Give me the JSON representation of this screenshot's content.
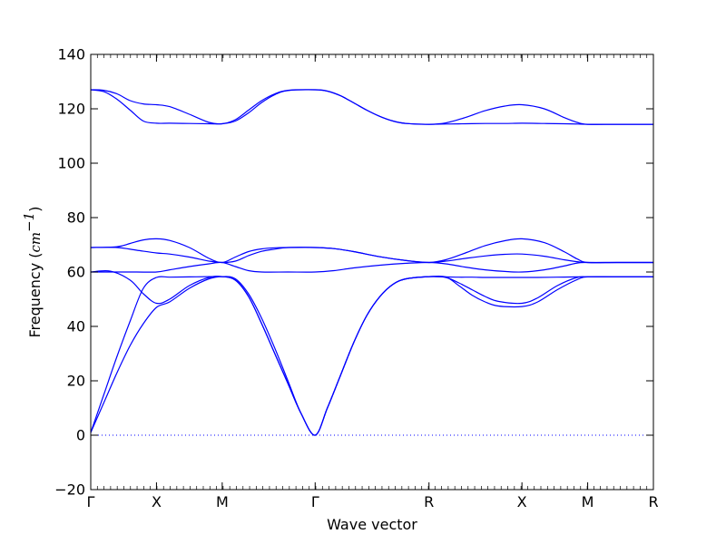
{
  "chart_data": {
    "type": "line",
    "title": "",
    "xlabel": "Wave vector",
    "ylabel": {
      "prefix": "Frequency (",
      "unit_base": "cm",
      "unit_exp": "−1",
      "suffix": ")"
    },
    "ylim": [
      -20,
      140
    ],
    "yticks": [
      -20,
      0,
      20,
      40,
      60,
      80,
      100,
      120,
      140
    ],
    "xticks": [
      {
        "label": "Γ",
        "pos": 0.0
      },
      {
        "label": "X",
        "pos": 0.5
      },
      {
        "label": "M",
        "pos": 1.0
      },
      {
        "label": "Γ",
        "pos": 1.7071
      },
      {
        "label": "R",
        "pos": 2.5731
      },
      {
        "label": "X",
        "pos": 3.2802
      },
      {
        "label": "M",
        "pos": 3.7802
      },
      {
        "label": "R",
        "pos": 4.2802
      }
    ],
    "line_color": "#0000ff",
    "zero_line_color": "#0000ff",
    "series": [
      {
        "values": [
          [
            0,
            1
          ],
          [
            0.1,
            12
          ],
          [
            0.2,
            23
          ],
          [
            0.3,
            33
          ],
          [
            0.4,
            41
          ],
          [
            0.5,
            47
          ],
          [
            0.6,
            49
          ],
          [
            0.75,
            54
          ],
          [
            0.9,
            57.5
          ],
          [
            1,
            58.3
          ],
          [
            1.1,
            57.5
          ],
          [
            1.2,
            52
          ],
          [
            1.3,
            43
          ],
          [
            1.4,
            32
          ],
          [
            1.5,
            20
          ],
          [
            1.6,
            8
          ],
          [
            1.7071,
            0
          ],
          [
            1.8,
            10
          ],
          [
            1.9,
            22
          ],
          [
            2.0,
            34
          ],
          [
            2.1,
            44
          ],
          [
            2.2,
            51
          ],
          [
            2.3,
            55.5
          ],
          [
            2.4,
            57.5
          ],
          [
            2.5731,
            58.3
          ],
          [
            2.7,
            58.2
          ],
          [
            2.8,
            55
          ],
          [
            2.9,
            51.5
          ],
          [
            3.0,
            49
          ],
          [
            3.1,
            47.5
          ],
          [
            3.2802,
            47.3
          ],
          [
            3.4,
            49
          ],
          [
            3.55,
            53.5
          ],
          [
            3.7,
            57.2
          ],
          [
            3.7802,
            58.2
          ],
          [
            4.0,
            58.2
          ],
          [
            4.2802,
            58.2
          ]
        ]
      },
      {
        "values": [
          [
            0,
            1
          ],
          [
            0.1,
            15
          ],
          [
            0.2,
            29
          ],
          [
            0.3,
            42
          ],
          [
            0.4,
            54
          ],
          [
            0.5,
            58
          ],
          [
            0.6,
            58.1
          ],
          [
            0.75,
            58.2
          ],
          [
            0.9,
            58.3
          ],
          [
            1,
            58.3
          ],
          [
            1.1,
            57
          ],
          [
            1.2,
            51
          ],
          [
            1.3,
            41
          ],
          [
            1.4,
            30
          ],
          [
            1.5,
            19
          ],
          [
            1.6,
            8
          ],
          [
            1.7071,
            0
          ],
          [
            1.8,
            10
          ],
          [
            1.9,
            22
          ],
          [
            2.0,
            34
          ],
          [
            2.1,
            44
          ],
          [
            2.2,
            51
          ],
          [
            2.3,
            55.5
          ],
          [
            2.4,
            57.5
          ],
          [
            2.5731,
            58.3
          ],
          [
            2.7,
            58.2
          ],
          [
            2.8,
            58.1
          ],
          [
            2.9,
            58.1
          ],
          [
            3.0,
            58.0
          ],
          [
            3.1,
            58.0
          ],
          [
            3.2802,
            58.0
          ],
          [
            3.4,
            58.0
          ],
          [
            3.55,
            58.1
          ],
          [
            3.7,
            58.2
          ],
          [
            3.7802,
            58.2
          ],
          [
            4.0,
            58.2
          ],
          [
            4.2802,
            58.2
          ]
        ]
      },
      {
        "values": [
          [
            0,
            60
          ],
          [
            0.15,
            60.3
          ],
          [
            0.3,
            57
          ],
          [
            0.4,
            52
          ],
          [
            0.5,
            48.5
          ],
          [
            0.6,
            50
          ],
          [
            0.75,
            55
          ],
          [
            0.9,
            58
          ],
          [
            1,
            58.3
          ],
          [
            1.1,
            57
          ],
          [
            1.2,
            51
          ],
          [
            1.3,
            41
          ],
          [
            1.4,
            30
          ],
          [
            1.5,
            19
          ],
          [
            1.6,
            8
          ],
          [
            1.7071,
            0
          ],
          [
            1.8,
            10
          ],
          [
            1.9,
            22
          ],
          [
            2.0,
            34
          ],
          [
            2.1,
            44
          ],
          [
            2.2,
            51
          ],
          [
            2.3,
            55.5
          ],
          [
            2.4,
            57.5
          ],
          [
            2.5731,
            58.3
          ],
          [
            2.7,
            58
          ],
          [
            2.8,
            56
          ],
          [
            2.9,
            53.5
          ],
          [
            3.0,
            51
          ],
          [
            3.1,
            49.2
          ],
          [
            3.2802,
            48.5
          ],
          [
            3.4,
            50.5
          ],
          [
            3.55,
            55
          ],
          [
            3.7,
            58
          ],
          [
            3.7802,
            58.2
          ],
          [
            4.0,
            58.2
          ],
          [
            4.2802,
            58.2
          ]
        ]
      },
      {
        "values": [
          [
            0,
            60
          ],
          [
            0.2,
            60
          ],
          [
            0.35,
            60
          ],
          [
            0.5,
            60
          ],
          [
            0.6,
            60.8
          ],
          [
            0.75,
            62
          ],
          [
            0.9,
            63
          ],
          [
            1,
            63.5
          ],
          [
            1.1,
            62
          ],
          [
            1.2,
            60.5
          ],
          [
            1.3,
            60
          ],
          [
            1.5,
            60
          ],
          [
            1.7071,
            60
          ],
          [
            1.85,
            60.5
          ],
          [
            2.0,
            61.5
          ],
          [
            2.2,
            62.5
          ],
          [
            2.4,
            63.2
          ],
          [
            2.5731,
            63.5
          ],
          [
            2.7,
            63
          ],
          [
            2.85,
            61.8
          ],
          [
            3.0,
            60.8
          ],
          [
            3.15,
            60.2
          ],
          [
            3.2802,
            60
          ],
          [
            3.45,
            60.8
          ],
          [
            3.6,
            62.2
          ],
          [
            3.7,
            63.3
          ],
          [
            3.7802,
            63.5
          ],
          [
            4.0,
            63.5
          ],
          [
            4.2802,
            63.5
          ]
        ]
      },
      {
        "values": [
          [
            0,
            69
          ],
          [
            0.2,
            69
          ],
          [
            0.35,
            68
          ],
          [
            0.5,
            67
          ],
          [
            0.6,
            66.6
          ],
          [
            0.75,
            65.5
          ],
          [
            0.9,
            64
          ],
          [
            1,
            63.5
          ],
          [
            1.1,
            64
          ],
          [
            1.2,
            66
          ],
          [
            1.3,
            67.6
          ],
          [
            1.4,
            68.4
          ],
          [
            1.5,
            69
          ],
          [
            1.7071,
            69
          ],
          [
            1.85,
            68.6
          ],
          [
            2.0,
            67.5
          ],
          [
            2.2,
            65.6
          ],
          [
            2.4,
            64.2
          ],
          [
            2.5731,
            63.5
          ],
          [
            2.7,
            64
          ],
          [
            2.85,
            65
          ],
          [
            3.0,
            65.9
          ],
          [
            3.15,
            66.5
          ],
          [
            3.2802,
            66.6
          ],
          [
            3.45,
            65.8
          ],
          [
            3.6,
            64.5
          ],
          [
            3.7,
            63.8
          ],
          [
            3.7802,
            63.5
          ],
          [
            4.0,
            63.5
          ],
          [
            4.2802,
            63.5
          ]
        ]
      },
      {
        "values": [
          [
            0,
            69
          ],
          [
            0.2,
            69.3
          ],
          [
            0.3,
            70.5
          ],
          [
            0.4,
            71.8
          ],
          [
            0.5,
            72.2
          ],
          [
            0.6,
            71.6
          ],
          [
            0.75,
            69
          ],
          [
            0.9,
            65
          ],
          [
            1,
            63.5
          ],
          [
            1.1,
            65.5
          ],
          [
            1.2,
            67.5
          ],
          [
            1.3,
            68.5
          ],
          [
            1.4,
            68.9
          ],
          [
            1.5,
            69
          ],
          [
            1.7071,
            69
          ],
          [
            1.85,
            68.6
          ],
          [
            2.0,
            67.5
          ],
          [
            2.2,
            65.6
          ],
          [
            2.4,
            64.2
          ],
          [
            2.5731,
            63.5
          ],
          [
            2.7,
            64.5
          ],
          [
            2.85,
            67
          ],
          [
            3.0,
            69.7
          ],
          [
            3.15,
            71.5
          ],
          [
            3.2802,
            72.2
          ],
          [
            3.45,
            70.8
          ],
          [
            3.6,
            67.5
          ],
          [
            3.7,
            64.8
          ],
          [
            3.7802,
            63.5
          ],
          [
            4.0,
            63.5
          ],
          [
            4.2802,
            63.5
          ]
        ]
      },
      {
        "values": [
          [
            0,
            127
          ],
          [
            0.1,
            126.8
          ],
          [
            0.2,
            125.5
          ],
          [
            0.3,
            123
          ],
          [
            0.4,
            121.8
          ],
          [
            0.5,
            121.5
          ],
          [
            0.6,
            120.8
          ],
          [
            0.75,
            118
          ],
          [
            0.9,
            115
          ],
          [
            1,
            114.5
          ],
          [
            1.1,
            116
          ],
          [
            1.2,
            119.5
          ],
          [
            1.3,
            123
          ],
          [
            1.4,
            125.5
          ],
          [
            1.5,
            126.8
          ],
          [
            1.7071,
            127
          ],
          [
            1.8,
            126.5
          ],
          [
            1.9,
            124.8
          ],
          [
            2.0,
            122.2
          ],
          [
            2.1,
            119.5
          ],
          [
            2.2,
            117.2
          ],
          [
            2.3,
            115.5
          ],
          [
            2.4,
            114.6
          ],
          [
            2.5731,
            114.3
          ],
          [
            2.7,
            114.8
          ],
          [
            2.85,
            116.8
          ],
          [
            3.0,
            119.3
          ],
          [
            3.15,
            121
          ],
          [
            3.2802,
            121.5
          ],
          [
            3.45,
            120
          ],
          [
            3.6,
            116.8
          ],
          [
            3.7,
            115
          ],
          [
            3.7802,
            114.3
          ],
          [
            4.0,
            114.3
          ],
          [
            4.2802,
            114.3
          ]
        ]
      },
      {
        "values": [
          [
            0,
            127
          ],
          [
            0.1,
            126.3
          ],
          [
            0.2,
            123.5
          ],
          [
            0.3,
            119.5
          ],
          [
            0.4,
            115.5
          ],
          [
            0.5,
            114.7
          ],
          [
            0.6,
            114.7
          ],
          [
            0.75,
            114.6
          ],
          [
            0.9,
            114.5
          ],
          [
            1,
            114.5
          ],
          [
            1.1,
            115.5
          ],
          [
            1.2,
            118.5
          ],
          [
            1.3,
            122.3
          ],
          [
            1.4,
            125.2
          ],
          [
            1.5,
            126.7
          ],
          [
            1.7071,
            127
          ],
          [
            1.8,
            126.5
          ],
          [
            1.9,
            124.8
          ],
          [
            2.0,
            122.2
          ],
          [
            2.1,
            119.5
          ],
          [
            2.2,
            117.2
          ],
          [
            2.3,
            115.5
          ],
          [
            2.4,
            114.6
          ],
          [
            2.5731,
            114.3
          ],
          [
            2.7,
            114.4
          ],
          [
            2.85,
            114.5
          ],
          [
            3.0,
            114.6
          ],
          [
            3.15,
            114.6
          ],
          [
            3.2802,
            114.7
          ],
          [
            3.45,
            114.6
          ],
          [
            3.6,
            114.5
          ],
          [
            3.7,
            114.4
          ],
          [
            3.7802,
            114.3
          ],
          [
            4.0,
            114.3
          ],
          [
            4.2802,
            114.3
          ]
        ]
      }
    ]
  }
}
